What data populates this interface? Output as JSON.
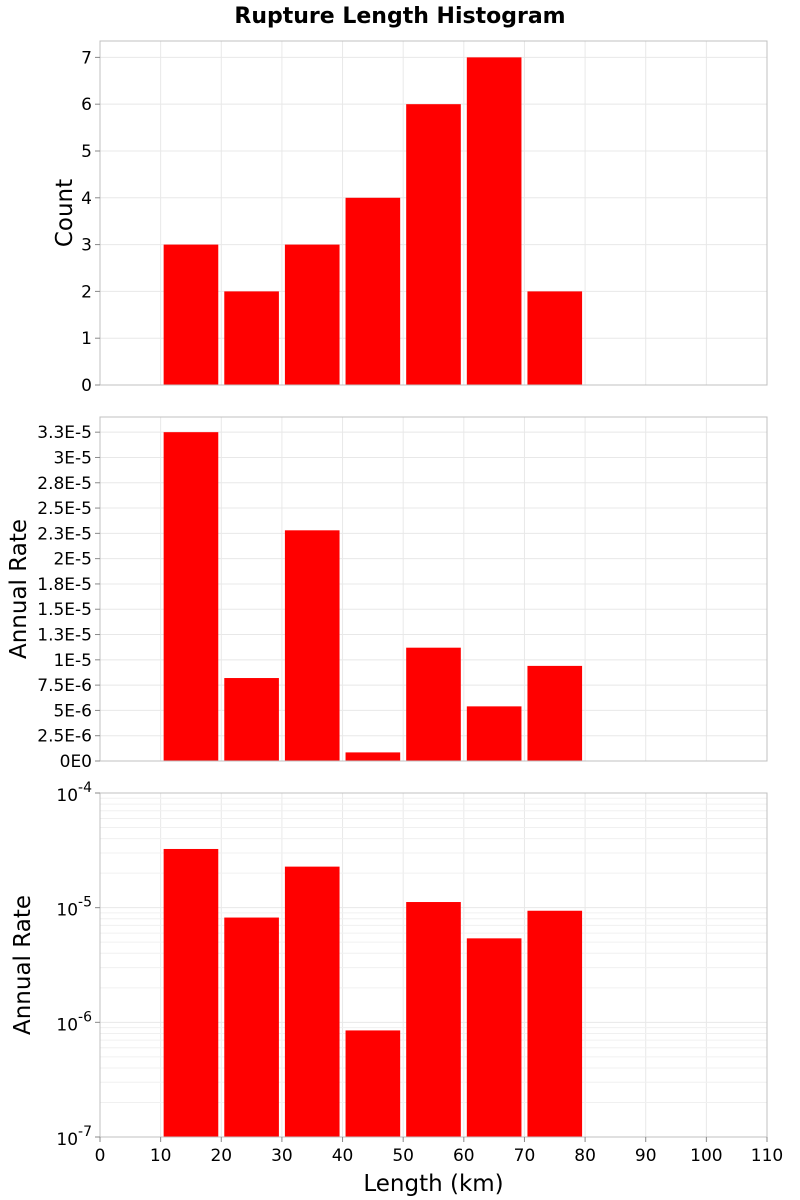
{
  "chart_data": [
    {
      "type": "bar",
      "title": "Rupture Length Histogram",
      "xlabel": "",
      "ylabel": "Count",
      "x": [
        15,
        25,
        35,
        45,
        55,
        65,
        75
      ],
      "bin_width": 10,
      "values": [
        3,
        2,
        3,
        4,
        6,
        7,
        2
      ],
      "xlim": [
        0,
        110
      ],
      "ylim": [
        0,
        7.35
      ],
      "yscale": "linear",
      "y_tick_values": [
        0,
        1,
        2,
        3,
        4,
        5,
        6,
        7
      ],
      "y_tick_labels": [
        "0",
        "1",
        "2",
        "3",
        "4",
        "5",
        "6",
        "7"
      ],
      "color": "#ff0000",
      "grid": true
    },
    {
      "type": "bar",
      "xlabel": "",
      "ylabel": "Annual Rate",
      "x": [
        15,
        25,
        35,
        45,
        55,
        65,
        75
      ],
      "bin_width": 10,
      "values": [
        3.25e-05,
        8.2e-06,
        2.28e-05,
        8.5e-07,
        1.12e-05,
        5.4e-06,
        9.4e-06
      ],
      "xlim": [
        0,
        110
      ],
      "ylim": [
        0,
        3.4e-05
      ],
      "yscale": "linear",
      "y_tick_values": [
        0,
        2.5e-06,
        5e-06,
        7.5e-06,
        1e-05,
        1.25e-05,
        1.5e-05,
        1.75e-05,
        2e-05,
        2.25e-05,
        2.5e-05,
        2.75e-05,
        3e-05,
        3.25e-05
      ],
      "y_tick_labels": [
        "0E0",
        "2.5E-6",
        "5E-6",
        "7.5E-6",
        "1E-5",
        "1.3E-5",
        "1.5E-5",
        "1.8E-5",
        "2E-5",
        "2.3E-5",
        "2.5E-5",
        "2.8E-5",
        "3E-5",
        "3.3E-5"
      ],
      "color": "#ff0000",
      "grid": true
    },
    {
      "type": "bar",
      "xlabel": "Length (km)",
      "ylabel": "Annual Rate",
      "x": [
        15,
        25,
        35,
        45,
        55,
        65,
        75
      ],
      "bin_width": 10,
      "values": [
        3.25e-05,
        8.2e-06,
        2.28e-05,
        8.5e-07,
        1.12e-05,
        5.4e-06,
        9.4e-06
      ],
      "xlim": [
        0,
        110
      ],
      "ylim": [
        1e-07,
        0.0001
      ],
      "yscale": "log",
      "y_tick_values": [
        1e-07,
        1e-06,
        1e-05,
        0.0001
      ],
      "y_tick_labels": [
        {
          "base": "10",
          "exp": "-7"
        },
        {
          "base": "10",
          "exp": "-6"
        },
        {
          "base": "10",
          "exp": "-5"
        },
        {
          "base": "10",
          "exp": "-4"
        }
      ],
      "x_tick_values": [
        0,
        10,
        20,
        30,
        40,
        50,
        60,
        70,
        80,
        90,
        100,
        110
      ],
      "x_tick_labels": [
        "0",
        "10",
        "20",
        "30",
        "40",
        "50",
        "60",
        "70",
        "80",
        "90",
        "100",
        "110"
      ],
      "color": "#ff0000",
      "grid": true
    }
  ]
}
